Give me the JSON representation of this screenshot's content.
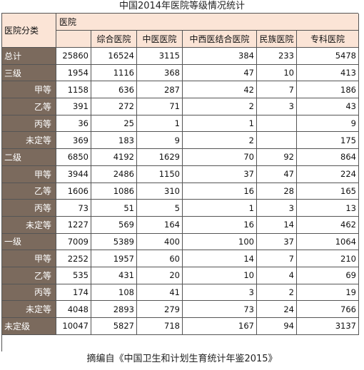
{
  "title": "中国2014年医院等级情况统计",
  "caption": "摘编自《中国卫生和计划生育统计年鉴2015》",
  "corner_label": "医院分类",
  "group_header": "医院",
  "columns": [
    "",
    "综合医院",
    "中医医院",
    "中西医结合医院",
    "民族医院",
    "专科医院"
  ],
  "rows": [
    {
      "label": "总计",
      "sub": false,
      "values": [
        "25860",
        "16524",
        "3115",
        "384",
        "233",
        "5478"
      ]
    },
    {
      "label": "三级",
      "sub": false,
      "values": [
        "1954",
        "1116",
        "368",
        "47",
        "10",
        "413"
      ]
    },
    {
      "label": "甲等",
      "sub": true,
      "values": [
        "1158",
        "636",
        "287",
        "42",
        "7",
        "186"
      ]
    },
    {
      "label": "乙等",
      "sub": true,
      "values": [
        "391",
        "272",
        "71",
        "2",
        "3",
        "43"
      ]
    },
    {
      "label": "丙等",
      "sub": true,
      "values": [
        "36",
        "25",
        "1",
        "1",
        "",
        "9"
      ]
    },
    {
      "label": "未定等",
      "sub": true,
      "values": [
        "369",
        "183",
        "9",
        "2",
        "",
        "175"
      ]
    },
    {
      "label": "二级",
      "sub": false,
      "values": [
        "6850",
        "4192",
        "1629",
        "70",
        "92",
        "864"
      ]
    },
    {
      "label": "甲等",
      "sub": true,
      "values": [
        "3944",
        "2486",
        "1150",
        "37",
        "47",
        "224"
      ]
    },
    {
      "label": "乙等",
      "sub": true,
      "values": [
        "1606",
        "1086",
        "310",
        "16",
        "28",
        "165"
      ]
    },
    {
      "label": "丙等",
      "sub": true,
      "values": [
        "73",
        "51",
        "5",
        "1",
        "3",
        "13"
      ]
    },
    {
      "label": "未定等",
      "sub": true,
      "values": [
        "1227",
        "569",
        "164",
        "16",
        "14",
        "462"
      ]
    },
    {
      "label": "一级",
      "sub": false,
      "values": [
        "7009",
        "5389",
        "400",
        "100",
        "37",
        "1064"
      ]
    },
    {
      "label": "甲等",
      "sub": true,
      "values": [
        "2252",
        "1957",
        "60",
        "14",
        "7",
        "210"
      ]
    },
    {
      "label": "乙等",
      "sub": true,
      "values": [
        "535",
        "431",
        "20",
        "10",
        "4",
        "69"
      ]
    },
    {
      "label": "丙等",
      "sub": true,
      "values": [
        "174",
        "108",
        "41",
        "3",
        "2",
        "19"
      ]
    },
    {
      "label": "未定等",
      "sub": true,
      "values": [
        "4048",
        "2893",
        "279",
        "73",
        "24",
        "766"
      ]
    },
    {
      "label": "未定级",
      "sub": false,
      "values": [
        "10047",
        "5827",
        "718",
        "167",
        "94",
        "3137"
      ]
    }
  ],
  "colors": {
    "header_bg": "#fbe4d6",
    "row_label_bg": "#7b6a5d"
  }
}
